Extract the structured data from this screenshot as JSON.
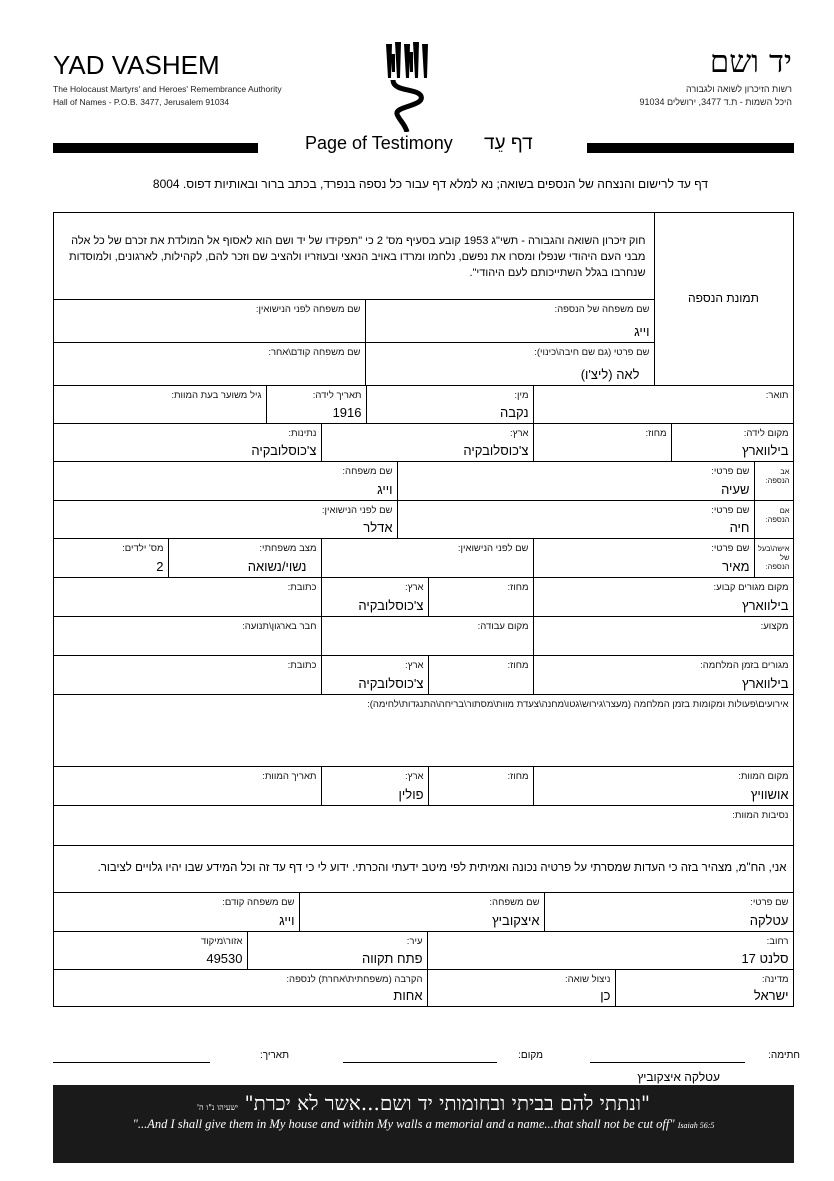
{
  "header": {
    "org_en": "YAD VASHEM",
    "org_en_sub1": "The Holocaust Martyrs' and Heroes' Remembrance Authority",
    "org_en_sub2": "Hall of Names - P.O.B. 3477, Jerusalem 91034",
    "org_he": "יד ושם",
    "org_he_sub1": "רשות הזיכרון לשואה ולגבורה",
    "org_he_sub2": "היכל השמות - ת.ד 3477, ירושלים 91034",
    "doc_title_en": "Page of Testimony",
    "doc_title_he": "דף עֵד",
    "instructions": "דף עד לרישום והנצחה של הנספים בשואה; נא למלא דף עבור כל נספה בנפרד, בכתב ברור ובאותיות דפוס.  8004"
  },
  "intro": "חוק זיכרון השואה והגבורה - תשי\"ג 1953 קובע בסעיף מס' 2 כי \"תפקידו של יד ושם הוא לאסוף אל המולדת את זכרם של כל אלה מבני העם היהודי שנפלו ומסרו את נפשם, נלחמו ומרדו באויב הנאצי ובעוזריו ולהציב שם וזכר להם, לקהילות, לארגונים, ולמוסדות שנחרבו בגלל השתייכותם לעם היהודי\".",
  "photo_label": "תמונת הנספה",
  "victim": {
    "surname": {
      "label": "שם משפחה של הנספה:",
      "value": "וייג"
    },
    "maiden": {
      "label": "שם משפחה לפני הנישואין:",
      "value": ""
    },
    "first_name": {
      "label": "שם פרטי (גם שם חיבה\\כינוי):",
      "value": "לאה (ליצ'ו)"
    },
    "prev_surname": {
      "label": "שם משפחה קודם\\אחר:",
      "value": ""
    },
    "title": {
      "label": "תואר:",
      "value": ""
    },
    "gender": {
      "label": "מין:",
      "value": "נקבה"
    },
    "birth_date": {
      "label": "תאריך לידה:",
      "value": "1916"
    },
    "age": {
      "label": "גיל משוער בעת המוות:",
      "value": ""
    },
    "birth_place": {
      "label": "מקום לידה:",
      "value": "בילווארץ"
    },
    "birth_district": {
      "label": "מחוז:",
      "value": ""
    },
    "birth_country": {
      "label": "ארץ:",
      "value": "צ'כוסלובקיה"
    },
    "nationality": {
      "label": "נתינות:",
      "value": "צ'כוסלובקיה"
    }
  },
  "father": {
    "row_label": "אב הנספה:",
    "first": {
      "label": "שם פרטי:",
      "value": "שעיה"
    },
    "last": {
      "label": "שם משפחה:",
      "value": "וייג"
    }
  },
  "mother": {
    "row_label": "אם הנספה:",
    "first": {
      "label": "שם פרטי:",
      "value": "חיה"
    },
    "maiden": {
      "label": "שם לפני הנישואין:",
      "value": "אדלר"
    }
  },
  "spouse": {
    "row_label": "אישה\\בעל של הנספה:",
    "first": {
      "label": "שם פרטי:",
      "value": "מאיר"
    },
    "maiden": {
      "label": "שם לפני הנישואין:",
      "value": ""
    },
    "status": {
      "label": "מצב משפחתי:",
      "value": "נשוי/נשואה"
    },
    "children": {
      "label": "מס' ילדים:",
      "value": "2"
    }
  },
  "residence": {
    "place": {
      "label": "מקום מגורים קבוע:",
      "value": "בילווארץ"
    },
    "district": {
      "label": "מחוז:",
      "value": ""
    },
    "country": {
      "label": "ארץ:",
      "value": "צ'כוסלובקיה"
    },
    "address": {
      "label": "כתובת:",
      "value": ""
    }
  },
  "work": {
    "profession": {
      "label": "מקצוע:",
      "value": ""
    },
    "workplace": {
      "label": "מקום עבודה:",
      "value": ""
    },
    "org": {
      "label": "חבר בארגון\\תנועה:",
      "value": ""
    }
  },
  "war_residence": {
    "place": {
      "label": "מגורים בזמן המלחמה:",
      "value": "בילווארץ"
    },
    "district": {
      "label": "מחוז:",
      "value": ""
    },
    "country": {
      "label": "ארץ:",
      "value": "צ'כוסלובקיה"
    },
    "address": {
      "label": "כתובת:",
      "value": ""
    }
  },
  "events": {
    "label": "אירועים\\פעולות ומקומות בזמן המלחמה (מעצר\\גירוש\\גטו\\מחנה\\צעדת מוות\\מסתור\\בריחה\\התנגדות\\לחימה):",
    "value": ""
  },
  "death": {
    "place": {
      "label": "מקום המוות:",
      "value": "אושוויץ"
    },
    "district": {
      "label": "מחוז:",
      "value": ""
    },
    "country": {
      "label": "ארץ:",
      "value": "פולין"
    },
    "date": {
      "label": "תאריך המוות:",
      "value": ""
    },
    "circumstances": {
      "label": "נסיבות המוות:",
      "value": ""
    }
  },
  "declaration": "אני, הח\"מ, מצהיר בזה כי העדות שמסרתי על פרטיה נכונה ואמיתית לפי מיטב ידעתי והכרתי. ידוע לי כי דף עד זה וכל המידע שבו יהיו גלויים לציבור.",
  "witness": {
    "first": {
      "label": "שם פרטי:",
      "value": "עטלקה"
    },
    "last": {
      "label": "שם משפחה:",
      "value": "איצקוביץ"
    },
    "prev": {
      "label": "שם משפחה קודם:",
      "value": "וייג"
    },
    "street": {
      "label": "רחוב:",
      "value": "סלנט 17"
    },
    "city": {
      "label": "עיר:",
      "value": "פתח תקווה"
    },
    "zip": {
      "label": "אזור\\מיקוד",
      "value": "49530"
    },
    "country": {
      "label": "מדינה:",
      "value": "ישראל"
    },
    "survivor": {
      "label": "ניצול שואה:",
      "value": "כן"
    },
    "relation": {
      "label": "הקרבה (משפחתית\\אחרת) לנספה:",
      "value": "אחות"
    }
  },
  "signature": {
    "sign_label": "חתימה:",
    "place_label": "מקום:",
    "date_label": "תאריך:",
    "signer_name": "עטלקה איצקוביץ"
  },
  "banner": {
    "quote_he": "\"ונתתי להם בביתי ובחומותי יד ושם...אשר לא יכרת\"",
    "ref_he": "ישעיהו נ\"ו ה'",
    "quote_en": "\"...And I shall give them in My house and within My walls a memorial and a name...that shall not be cut off\"",
    "ref_en": "Isaiah 56:5"
  }
}
